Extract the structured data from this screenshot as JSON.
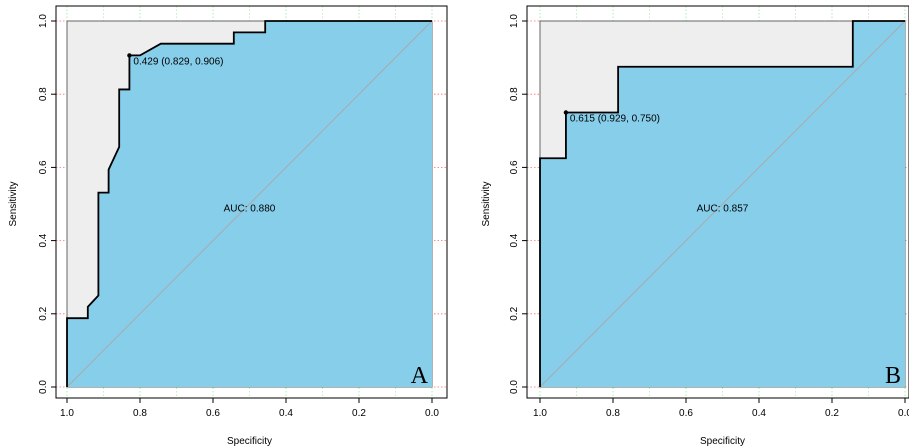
{
  "chart_data": [
    {
      "type": "area",
      "panel": "A",
      "xlabel": "Specificity",
      "ylabel": "Sensitivity",
      "xlim": [
        1.0,
        0.0
      ],
      "ylim": [
        0.0,
        1.0
      ],
      "x_ticks": [
        "1.0",
        "0.8",
        "0.6",
        "0.4",
        "0.2",
        "0.0"
      ],
      "y_ticks": [
        "0.0",
        "0.2",
        "0.4",
        "0.6",
        "0.8",
        "1.0"
      ],
      "grid": true,
      "colors": {
        "auc_fill": "#87ceeb",
        "roc_outline_fill": "#eeeeee",
        "diagonal": "#aaaaaa",
        "grid_x": "#90ee90",
        "grid_y": "#ff6b6b"
      },
      "roc_curve": {
        "specificity": [
          1.0,
          1.0,
          0.943,
          0.943,
          0.914,
          0.914,
          0.886,
          0.886,
          0.857,
          0.857,
          0.829,
          0.829,
          0.8,
          0.743,
          0.543,
          0.543,
          0.457,
          0.457,
          0.0
        ],
        "sensitivity": [
          0.0,
          0.188,
          0.188,
          0.219,
          0.25,
          0.531,
          0.531,
          0.594,
          0.656,
          0.813,
          0.813,
          0.906,
          0.906,
          0.938,
          0.938,
          0.969,
          0.969,
          1.0,
          1.0
        ]
      },
      "best_point": {
        "specificity": 0.829,
        "sensitivity": 0.906,
        "label": "0.429 (0.829, 0.906)"
      },
      "auc_text": "AUC: 0.880",
      "auc": 0.88
    },
    {
      "type": "area",
      "panel": "B",
      "xlabel": "Specificity",
      "ylabel": "Sensitivity",
      "xlim": [
        1.0,
        0.0
      ],
      "ylim": [
        0.0,
        1.0
      ],
      "x_ticks": [
        "1.0",
        "0.8",
        "0.6",
        "0.4",
        "0.2",
        "0.0"
      ],
      "y_ticks": [
        "0.0",
        "0.2",
        "0.4",
        "0.6",
        "0.8",
        "1.0"
      ],
      "grid": true,
      "colors": {
        "auc_fill": "#87ceeb",
        "roc_outline_fill": "#eeeeee",
        "diagonal": "#aaaaaa",
        "grid_x": "#90ee90",
        "grid_y": "#ff6b6b"
      },
      "roc_curve": {
        "specificity": [
          1.0,
          1.0,
          0.929,
          0.929,
          0.786,
          0.786,
          0.143,
          0.143,
          0.0
        ],
        "sensitivity": [
          0.0,
          0.625,
          0.625,
          0.75,
          0.75,
          0.875,
          0.875,
          1.0,
          1.0
        ]
      },
      "best_point": {
        "specificity": 0.929,
        "sensitivity": 0.75,
        "label": "0.615 (0.929, 0.750)"
      },
      "auc_text": "AUC: 0.857",
      "auc": 0.857
    }
  ]
}
